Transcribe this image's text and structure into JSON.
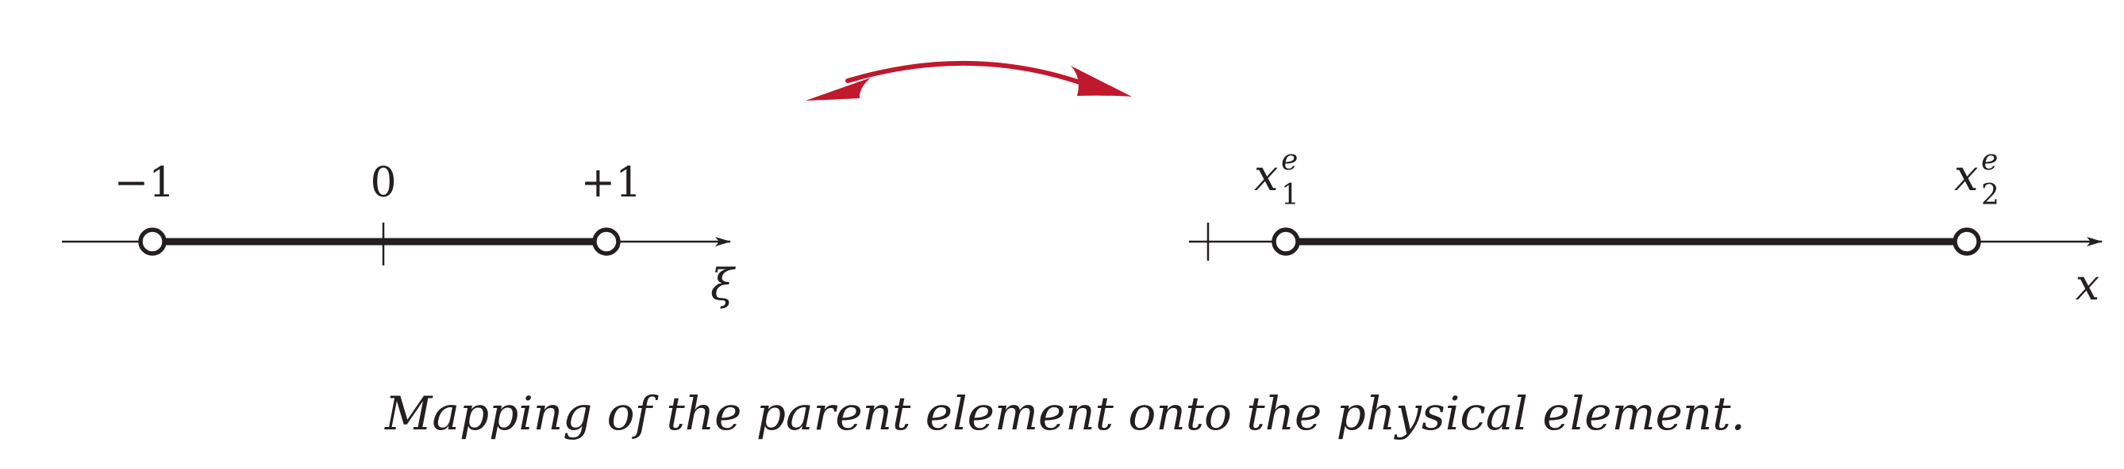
{
  "diagram": {
    "title": "Mapping of the parent element onto the physical element",
    "caption": "Mapping of the parent element onto the physical element.",
    "colors": {
      "ink": "#231f20",
      "arrow": "#c0182c",
      "node_fill": "#ffffff"
    },
    "parent_element": {
      "axis_label": "ξ",
      "tick_labels": {
        "left": "−1",
        "center": "0",
        "right": "+1"
      }
    },
    "physical_element": {
      "axis_label": "x",
      "node1": {
        "base": "x",
        "sup": "e",
        "sub": "1"
      },
      "node2": {
        "base": "x",
        "sup": "e",
        "sub": "2"
      }
    }
  }
}
